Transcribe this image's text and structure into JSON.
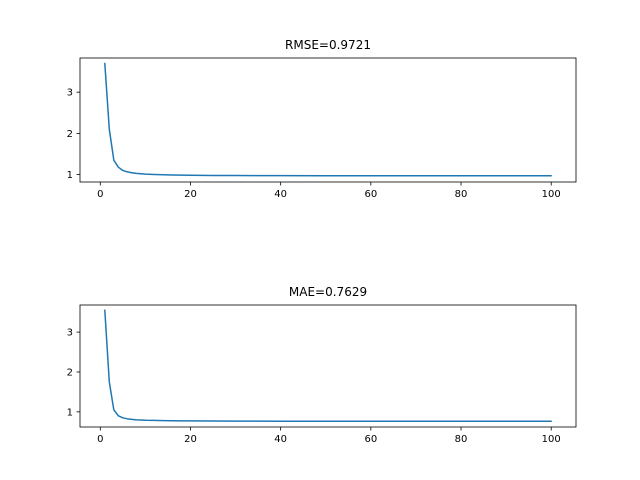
{
  "chart_data": [
    {
      "type": "line",
      "title": "RMSE=0.9721",
      "xlabel": "",
      "ylabel": "",
      "xlim": [
        -4.5,
        105.5
      ],
      "ylim": [
        0.82,
        3.83
      ],
      "xticks": [
        0,
        20,
        40,
        60,
        80,
        100
      ],
      "yticks": [
        1,
        2,
        3
      ],
      "grid": false,
      "color": "#1f77b4",
      "series": [
        {
          "x": [
            1,
            2,
            3,
            4,
            5,
            6,
            7,
            8,
            9,
            10,
            12,
            14,
            16,
            18,
            20,
            25,
            30,
            35,
            40,
            50,
            60,
            70,
            80,
            90,
            100
          ],
          "y": [
            3.7,
            2.1,
            1.35,
            1.18,
            1.1,
            1.065,
            1.045,
            1.03,
            1.02,
            1.012,
            1.002,
            0.995,
            0.99,
            0.986,
            0.983,
            0.979,
            0.977,
            0.975,
            0.974,
            0.973,
            0.9725,
            0.9723,
            0.9722,
            0.9721,
            0.9721
          ]
        }
      ]
    },
    {
      "type": "line",
      "title": "MAE=0.7629",
      "xlabel": "",
      "ylabel": "",
      "xlim": [
        -4.5,
        105.5
      ],
      "ylim": [
        0.62,
        3.68
      ],
      "xticks": [
        0,
        20,
        40,
        60,
        80,
        100
      ],
      "yticks": [
        1,
        2,
        3
      ],
      "grid": false,
      "color": "#1f77b4",
      "series": [
        {
          "x": [
            1,
            2,
            3,
            4,
            5,
            6,
            7,
            8,
            9,
            10,
            12,
            14,
            16,
            18,
            20,
            25,
            30,
            35,
            40,
            50,
            60,
            70,
            80,
            90,
            100
          ],
          "y": [
            3.55,
            1.75,
            1.05,
            0.9,
            0.85,
            0.825,
            0.81,
            0.8,
            0.795,
            0.79,
            0.785,
            0.78,
            0.777,
            0.775,
            0.773,
            0.77,
            0.768,
            0.766,
            0.765,
            0.764,
            0.7635,
            0.7632,
            0.763,
            0.7629,
            0.7629
          ]
        }
      ]
    }
  ]
}
